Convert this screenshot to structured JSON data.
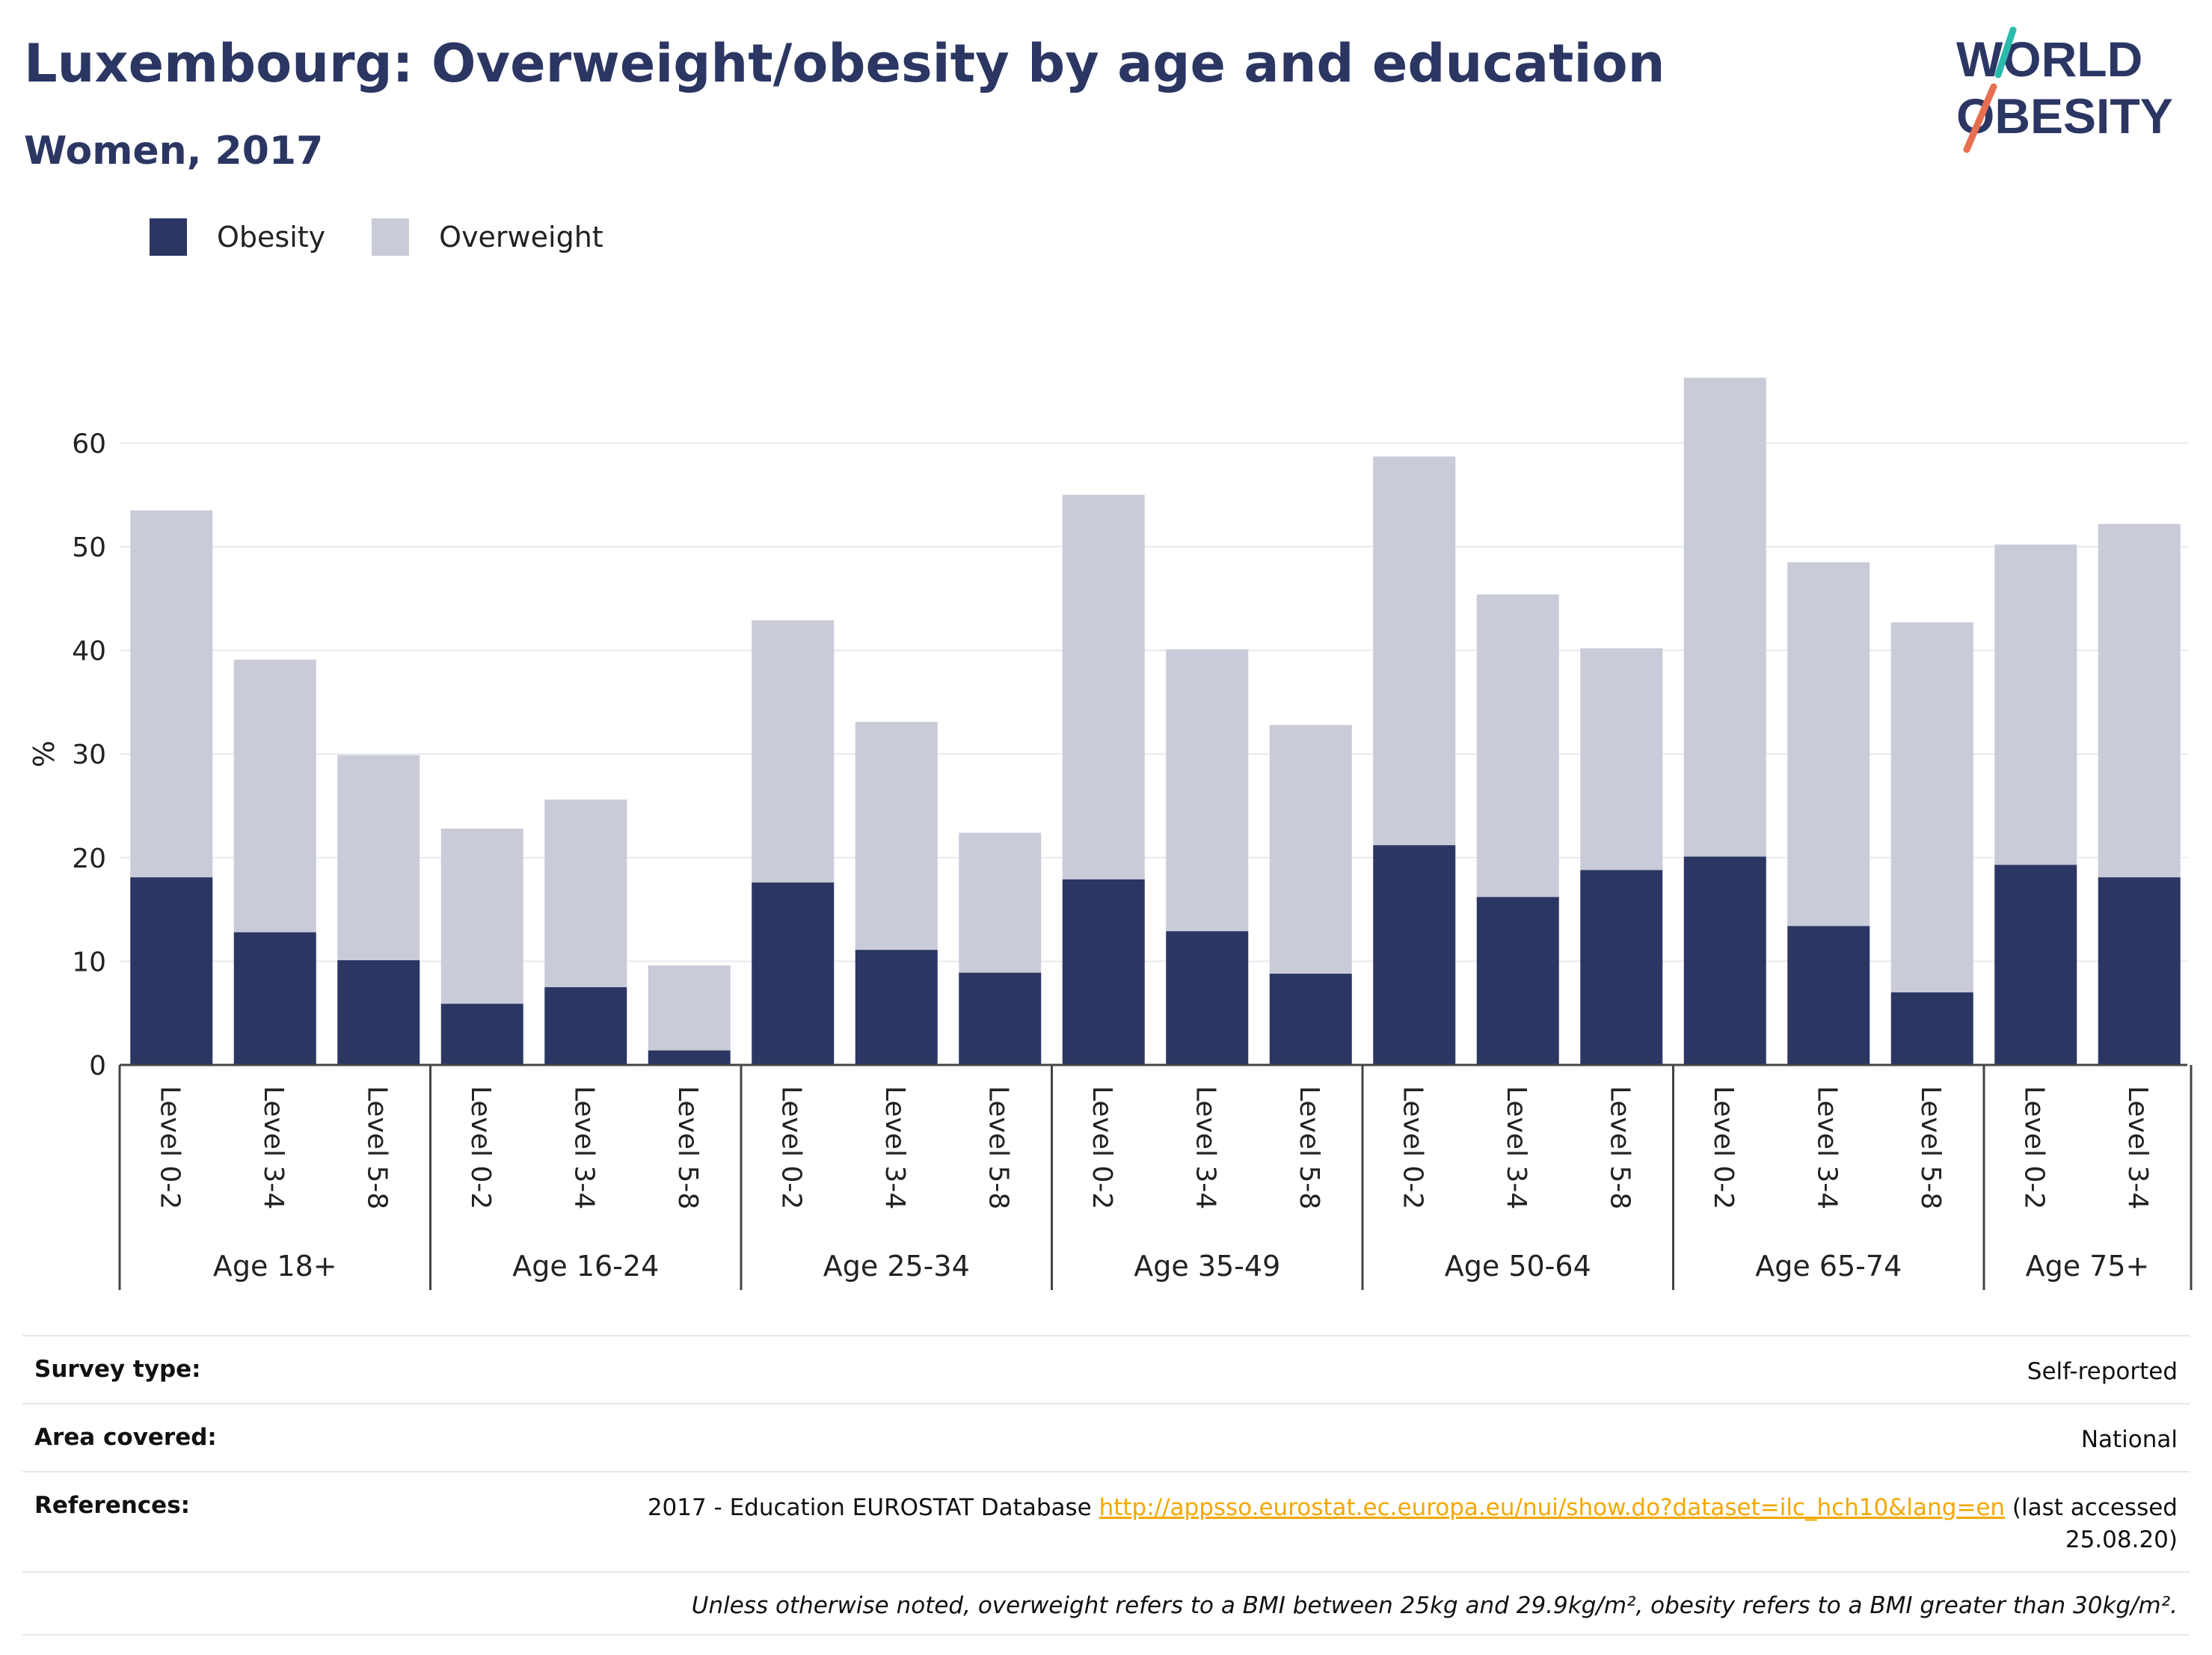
{
  "header": {
    "title": "Luxembourg: Overweight/obesity by age and education",
    "subtitle": "Women, 2017"
  },
  "logo": {
    "line1": "WORLD",
    "line2": "OBESITY",
    "icon": "world-obesity-logo"
  },
  "legend": [
    {
      "label": "Obesity",
      "color": "#2b3663"
    },
    {
      "label": "Overweight",
      "color": "#cacbd8"
    }
  ],
  "chart_data": {
    "type": "bar",
    "stacked": true,
    "ylabel": "%",
    "ylim": [
      0,
      70
    ],
    "yticks": [
      0,
      10,
      20,
      30,
      40,
      50,
      60
    ],
    "grid": true,
    "legend_position": "top-left",
    "groups": [
      {
        "label": "Age 18+",
        "categories": [
          "Level 0-2",
          "Level 3-4",
          "Level 5-8"
        ]
      },
      {
        "label": "Age 16-24",
        "categories": [
          "Level 0-2",
          "Level 3-4",
          "Level 5-8"
        ]
      },
      {
        "label": "Age 25-34",
        "categories": [
          "Level 0-2",
          "Level 3-4",
          "Level 5-8"
        ]
      },
      {
        "label": "Age 35-49",
        "categories": [
          "Level 0-2",
          "Level 3-4",
          "Level 5-8"
        ]
      },
      {
        "label": "Age 50-64",
        "categories": [
          "Level 0-2",
          "Level 3-4",
          "Level 5-8"
        ]
      },
      {
        "label": "Age 65-74",
        "categories": [
          "Level 0-2",
          "Level 3-4",
          "Level 5-8"
        ]
      },
      {
        "label": "Age 75+",
        "categories": [
          "Level 0-2",
          "Level 3-4"
        ]
      }
    ],
    "series": [
      {
        "name": "Obesity",
        "color": "#2b3663",
        "values": [
          18.1,
          12.8,
          10.1,
          5.9,
          7.5,
          1.4,
          17.6,
          11.1,
          8.9,
          17.9,
          12.9,
          8.8,
          21.2,
          16.2,
          18.8,
          20.1,
          13.4,
          7.0,
          19.3,
          18.1
        ]
      },
      {
        "name": "Overweight",
        "color": "#cacbd8",
        "values": [
          35.4,
          26.3,
          19.8,
          16.9,
          18.1,
          8.2,
          25.3,
          22.0,
          13.5,
          37.1,
          27.2,
          24.0,
          37.5,
          29.2,
          21.4,
          46.2,
          35.1,
          35.7,
          30.9,
          34.1
        ]
      }
    ]
  },
  "meta": {
    "survey_type_label": "Survey type:",
    "survey_type_value": "Self-reported",
    "area_label": "Area covered:",
    "area_value": "National",
    "references_label": "References:",
    "references_prefix": "2017 - Education EUROSTAT Database ",
    "references_url": "http://appsso.eurostat.ec.europa.eu/nui/show.do?dataset=ilc_hch10&lang=en",
    "references_suffix": " (last accessed 25.08.20)",
    "note": "Unless otherwise noted, overweight refers to a BMI between 25kg and 29.9kg/m², obesity refers to a BMI greater than 30kg/m²."
  }
}
